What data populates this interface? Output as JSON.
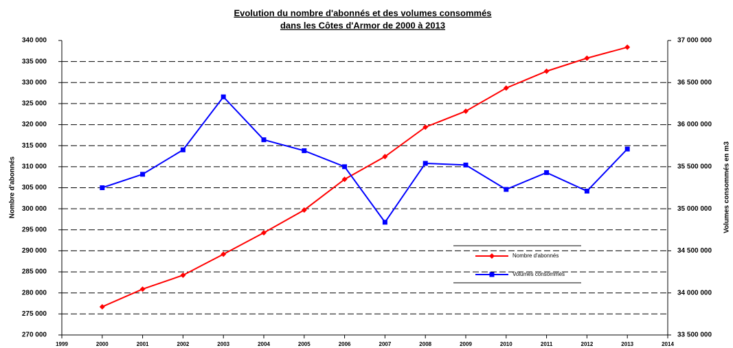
{
  "chart_data": {
    "type": "line",
    "title": [
      "Evolution du nombre d'abonnés et des volumes consommés",
      "dans les Côtes d'Armor de 2000 à 2013"
    ],
    "y_label": "Nombre d'abonnés",
    "y2_label": "Volumes consommés en m3",
    "x": [
      2000,
      2001,
      2002,
      2003,
      2004,
      2005,
      2006,
      2007,
      2008,
      2009,
      2010,
      2011,
      2012,
      2013
    ],
    "series": [
      {
        "name": "Nombre d'abonnés",
        "color": "#ff0000",
        "marker": "diamond",
        "values": [
          276700,
          280900,
          284200,
          289200,
          294300,
          299700,
          307000,
          312400,
          319400,
          323200,
          328700,
          332700,
          335800,
          338400
        ]
      },
      {
        "name": "Volumes consommés",
        "color": "#0000ff",
        "marker": "square",
        "axis": "y2",
        "values": [
          35250000,
          35410000,
          35700000,
          36330000,
          35820000,
          35690000,
          35500000,
          34840000,
          35540000,
          35520000,
          35230000,
          35430000,
          35210000,
          35710000
        ]
      }
    ],
    "xlim": [
      1999,
      2014
    ],
    "xticks": [
      1999,
      2000,
      2001,
      2002,
      2003,
      2004,
      2005,
      2006,
      2007,
      2008,
      2009,
      2010,
      2011,
      2012,
      2013,
      2014
    ],
    "ylim": [
      270000,
      340000
    ],
    "yticks": [
      {
        "value": 270000,
        "label": "270 000"
      },
      {
        "value": 275000,
        "label": "275 000"
      },
      {
        "value": 280000,
        "label": "280 000"
      },
      {
        "value": 285000,
        "label": "285 000"
      },
      {
        "value": 290000,
        "label": "290 000"
      },
      {
        "value": 295000,
        "label": "295 000"
      },
      {
        "value": 300000,
        "label": "300 000"
      },
      {
        "value": 305000,
        "label": "305 000"
      },
      {
        "value": 310000,
        "label": "310 000"
      },
      {
        "value": 315000,
        "label": "315 000"
      },
      {
        "value": 320000,
        "label": "320 000"
      },
      {
        "value": 325000,
        "label": "325 000"
      },
      {
        "value": 330000,
        "label": "330 000"
      },
      {
        "value": 335000,
        "label": "335 000"
      },
      {
        "value": 340000,
        "label": "340 000"
      }
    ],
    "y2lim": [
      33500000,
      37000000
    ],
    "y2ticks": [
      {
        "value": 33500000,
        "label": "33 500 000"
      },
      {
        "value": 34000000,
        "label": "34 000 000"
      },
      {
        "value": 34500000,
        "label": "34 500 000"
      },
      {
        "value": 35000000,
        "label": "35 000 000"
      },
      {
        "value": 35500000,
        "label": "35 500 000"
      },
      {
        "value": 36000000,
        "label": "36 000 000"
      },
      {
        "value": 36500000,
        "label": "36 500 000"
      },
      {
        "value": 37000000,
        "label": "37 000 000"
      }
    ],
    "grid": true
  }
}
